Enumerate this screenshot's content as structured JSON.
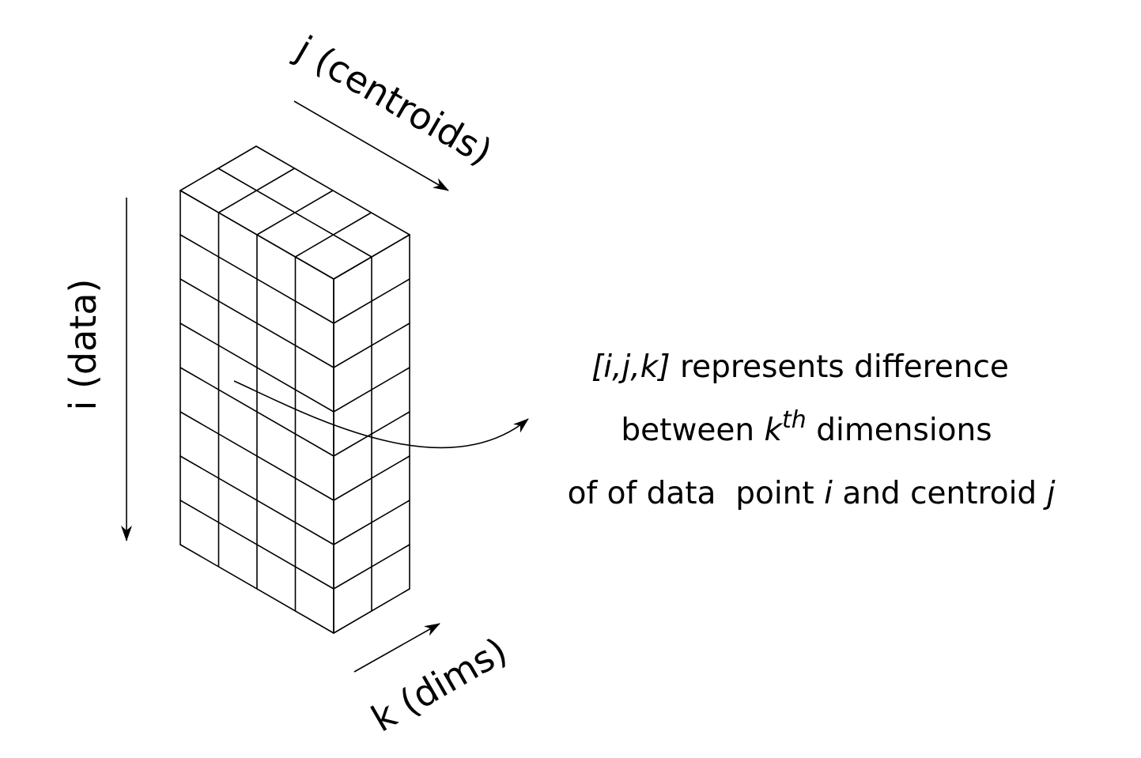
{
  "diagram": {
    "grid": {
      "rows": 8,
      "cols": 2,
      "depth": 4
    },
    "axis_labels": {
      "j": "j (centroids)",
      "i": "i (data)",
      "k": "k (dims)"
    },
    "description": {
      "line1": {
        "ital": "[i,j,k]",
        "rest": " represents difference"
      },
      "line2": {
        "pre": "between ",
        "k": "k",
        "sup": "th",
        "post": " dimensions"
      },
      "line3": {
        "pre": "of of data  point ",
        "i": "i",
        "mid": " and centroid ",
        "j": "j"
      }
    },
    "colors": {
      "stroke": "#000000",
      "background": "#ffffff"
    }
  }
}
